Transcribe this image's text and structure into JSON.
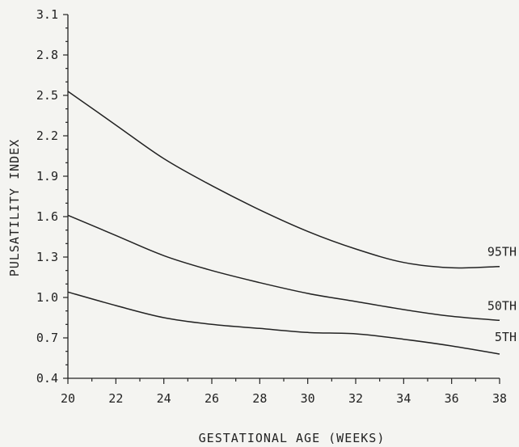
{
  "chart_data": {
    "type": "line",
    "title": "",
    "xlabel": "GESTATIONAL AGE (WEEKS)",
    "ylabel": "PULSATILITY INDEX",
    "xlim": [
      20,
      38
    ],
    "ylim": [
      0.4,
      3.1
    ],
    "x_ticks": [
      20,
      22,
      24,
      26,
      28,
      30,
      32,
      34,
      36,
      38
    ],
    "x_tick_labels": [
      "20",
      "22",
      "24",
      "26",
      "28",
      "30",
      "32",
      "34",
      "36",
      "38"
    ],
    "y_ticks": [
      0.4,
      0.7,
      1.0,
      1.3,
      1.6,
      1.9,
      2.2,
      2.5,
      2.8,
      3.1
    ],
    "y_tick_labels": [
      "0.4",
      "0.7",
      "1.0",
      "1.3",
      "1.6",
      "1.9",
      "2.2",
      "2.5",
      "2.8",
      "3.1"
    ],
    "grid": false,
    "x": [
      20,
      22,
      24,
      26,
      28,
      30,
      32,
      34,
      36,
      38
    ],
    "series": [
      {
        "name": "95TH",
        "values": [
          2.53,
          2.28,
          2.03,
          1.83,
          1.65,
          1.49,
          1.36,
          1.26,
          1.22,
          1.23
        ]
      },
      {
        "name": "50TH",
        "values": [
          1.61,
          1.46,
          1.31,
          1.2,
          1.11,
          1.03,
          0.97,
          0.91,
          0.86,
          0.83
        ]
      },
      {
        "name": "5TH",
        "values": [
          1.04,
          0.94,
          0.85,
          0.8,
          0.77,
          0.74,
          0.73,
          0.69,
          0.64,
          0.58
        ]
      }
    ]
  }
}
